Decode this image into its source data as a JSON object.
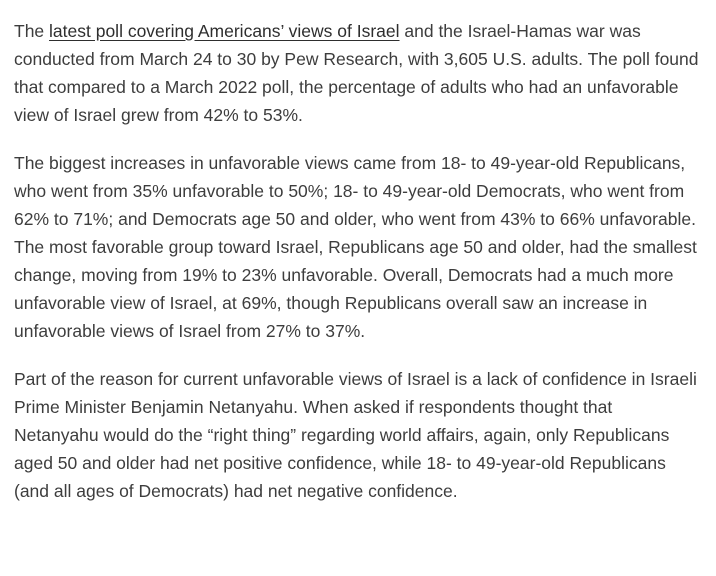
{
  "colors": {
    "background": "#ffffff",
    "body_text": "#3d3d3d",
    "link_text": "#2e2e2e"
  },
  "article": {
    "paragraph1": {
      "before_link": "The ",
      "link_text": "latest poll covering Americans’ views of Israel",
      "after_link": " and the Israel-Hamas war was conducted from March 24 to 30 by Pew Research, with 3,605 U.S. adults. The poll found that compared to a March 2022 poll, the percentage of adults who had an unfavorable view of Israel grew from 42% to 53%."
    },
    "paragraph2": "The biggest increases in unfavorable views came from 18- to 49-year-old Republicans, who went from 35% unfavorable to 50%; 18- to 49-year-old Democrats, who went from 62% to 71%; and Democrats age 50 and older, who went from 43% to 66% unfavorable. The most favorable group toward Israel, Republicans age 50 and older, had the smallest change, moving from 19% to 23% unfavorable. Overall, Democrats had a much more unfavorable view of Israel, at 69%, though Republicans overall saw an increase in unfavorable views of Israel from 27% to 37%.",
    "paragraph3": "Part of the reason for current unfavorable views of Israel is a lack of confidence in Israeli Prime Minister Benjamin Netanyahu. When asked if respondents thought that Netanyahu would do the “right thing” regarding world affairs, again, only Republicans aged 50 and older had net positive confidence, while 18- to 49-year-old Republicans (and all ages of Democrats) had net negative confidence."
  }
}
